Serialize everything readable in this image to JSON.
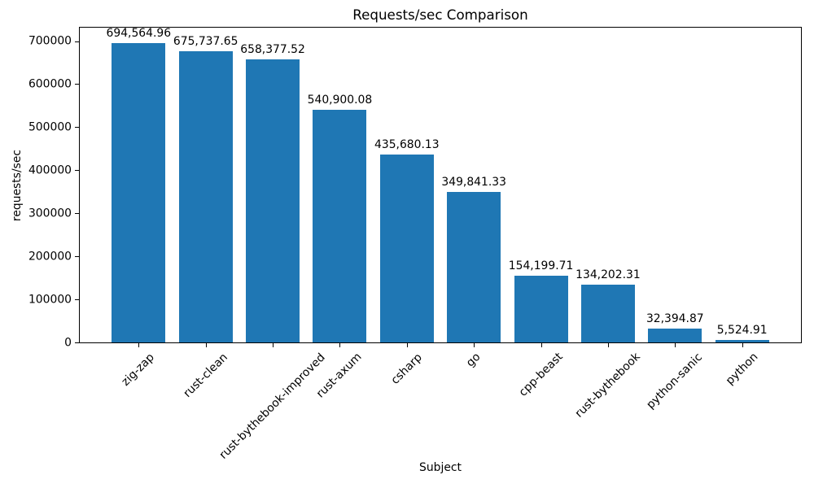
{
  "chart_data": {
    "type": "bar",
    "title": "Requests/sec Comparison",
    "xlabel": "Subject",
    "ylabel": "requests/sec",
    "categories": [
      "zig-zap",
      "rust-clean",
      "rust-bythebook-improved",
      "rust-axum",
      "csharp",
      "go",
      "cpp-beast",
      "rust-bythebook",
      "python-sanic",
      "python"
    ],
    "values": [
      694564.96,
      675737.65,
      658377.52,
      540900.08,
      435680.13,
      349841.33,
      154199.71,
      134202.31,
      32394.87,
      5524.91
    ],
    "value_labels": [
      "694,564.96",
      "675,737.65",
      "658,377.52",
      "540,900.08",
      "435,680.13",
      "349,841.33",
      "154,199.71",
      "134,202.31",
      "32,394.87",
      "5,524.91"
    ],
    "y_ticks": [
      0,
      100000,
      200000,
      300000,
      400000,
      500000,
      600000,
      700000
    ],
    "y_tick_labels": [
      "0",
      "100000",
      "200000",
      "300000",
      "400000",
      "500000",
      "600000",
      "700000"
    ],
    "ylim": [
      0,
      735000
    ],
    "x_tick_rotation_deg": 45,
    "bar_width_frac": 0.8,
    "grid": false,
    "legend": null,
    "colors": {
      "bar": "#1f77b4",
      "text": "#000000",
      "spine": "#000000",
      "background": "#ffffff"
    }
  }
}
